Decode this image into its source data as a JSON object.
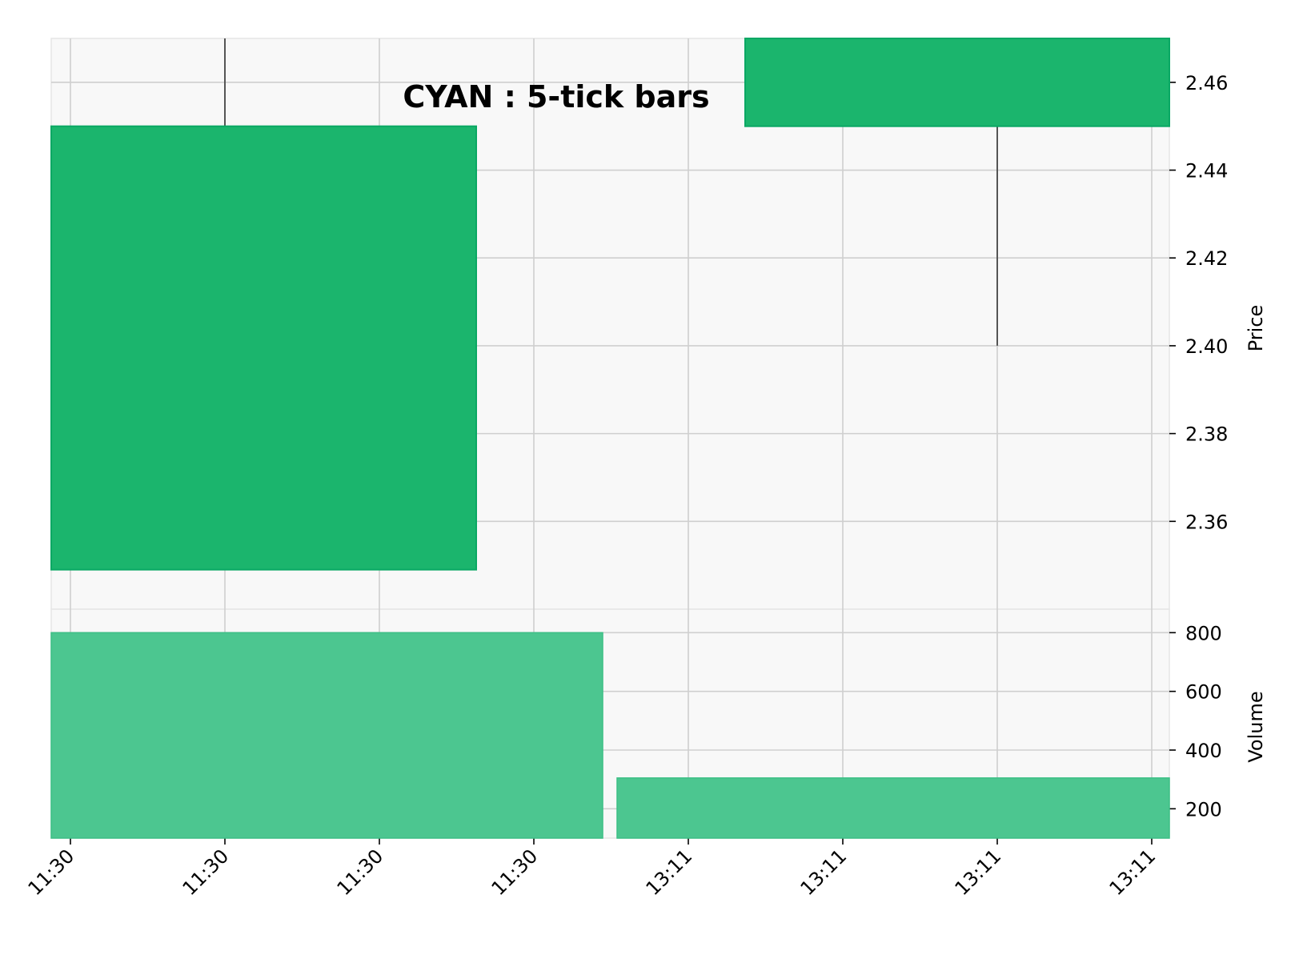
{
  "chart_data": {
    "type": "candlestick",
    "title": "CYAN : 5-tick bars",
    "grid": true,
    "colors": {
      "up_body": "#1bb56d",
      "up_edge": "#0aa864",
      "volume": "#4cc690",
      "wick": "#555555",
      "panel_bg": "#f8f8f8",
      "grid": "#cfcfcf"
    },
    "x_tick_labels": [
      "11:30",
      "11:30",
      "11:30",
      "11:30",
      "13:11",
      "13:11",
      "13:11",
      "13:11"
    ],
    "bars": [
      {
        "time": "11:30",
        "open": 2.349,
        "high": 2.47,
        "low": 2.349,
        "close": 2.45,
        "volume": 800
      },
      {
        "time": "13:11",
        "open": 2.45,
        "high": 2.47,
        "low": 2.4,
        "close": 2.47,
        "volume": 305
      }
    ],
    "price_panel": {
      "ylabel": "Price",
      "ylim": [
        2.34,
        2.47
      ],
      "ticks": [
        2.36,
        2.38,
        2.4,
        2.42,
        2.44,
        2.46
      ],
      "tick_labels": [
        "2.36",
        "2.38",
        "2.40",
        "2.42",
        "2.44",
        "2.46"
      ]
    },
    "volume_panel": {
      "ylabel": "Volume",
      "ylim": [
        100,
        880
      ],
      "ticks": [
        200,
        400,
        600,
        800
      ],
      "tick_labels": [
        "200",
        "400",
        "600",
        "800"
      ]
    }
  }
}
